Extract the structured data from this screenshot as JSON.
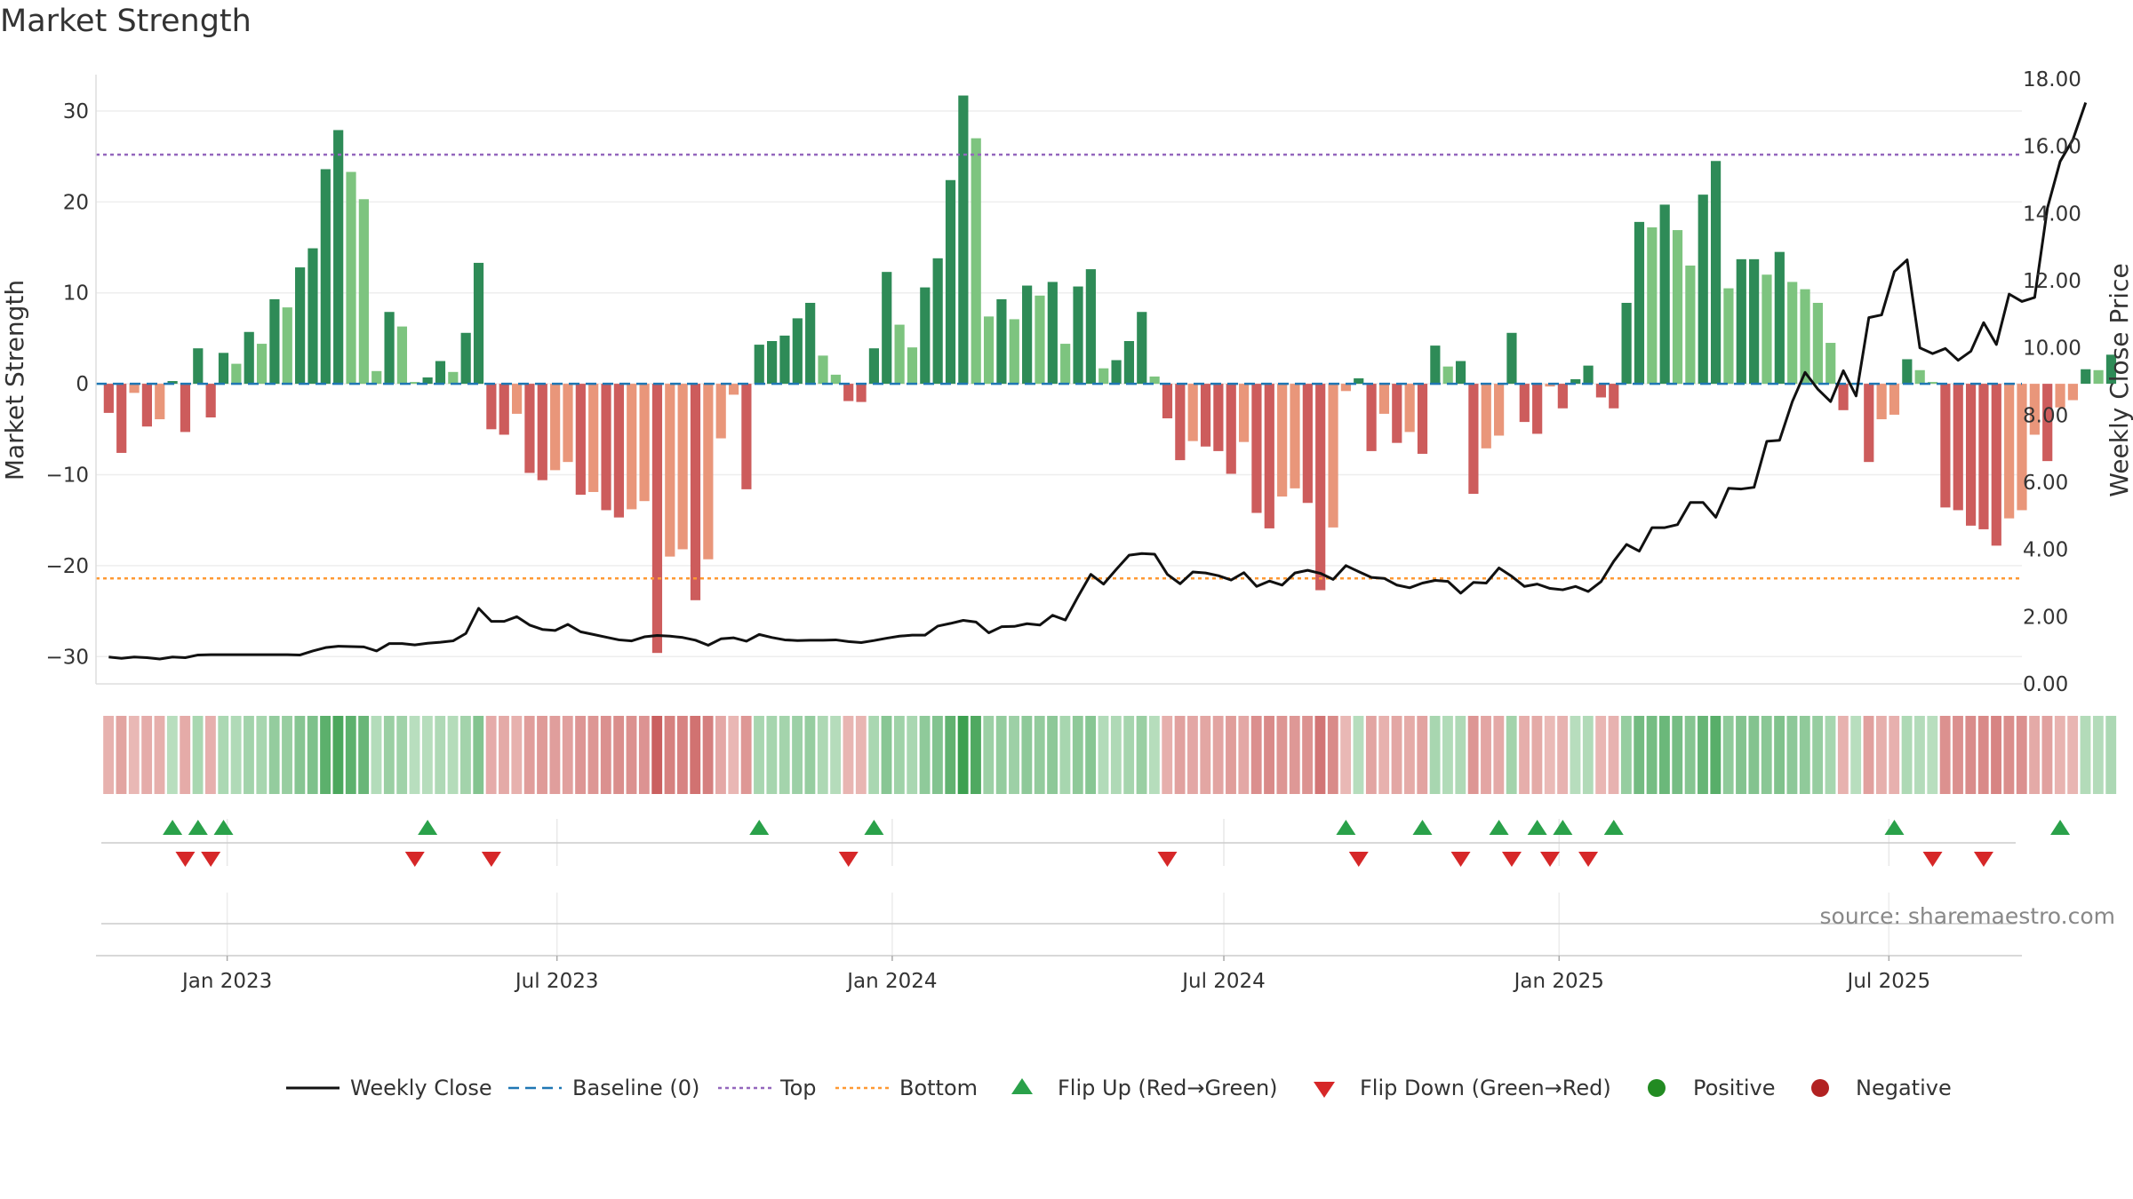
{
  "title": "Market Strength",
  "source": "source: sharemaestro.com",
  "chart_data": {
    "type": "bar",
    "y_left_label": "Market Strength",
    "y_right_label": "Weekly Close Price",
    "y_left_range": [
      -33,
      34
    ],
    "y_right_range": [
      0,
      18
    ],
    "y_left_ticks": [
      "30",
      "20",
      "10",
      "0",
      "−10",
      "−20",
      "−30"
    ],
    "y_left_tick_values": [
      30,
      20,
      10,
      0,
      -10,
      -20,
      -30
    ],
    "y_right_ticks": [
      "18.00",
      "16.00",
      "14.00",
      "12.00",
      "10.00",
      "8.00",
      "6.00",
      "4.00",
      "2.00",
      "0.00"
    ],
    "y_right_tick_values": [
      18,
      16,
      14,
      12,
      10,
      8,
      6,
      4,
      2,
      0
    ],
    "x_ticks": [
      "Jan 2023",
      "Jul 2023",
      "Jan 2024",
      "Jul 2024",
      "Jan 2025",
      "Jul 2025"
    ],
    "x_tick_dates": [
      "2023-01-01",
      "2023-07-01",
      "2024-01-01",
      "2024-07-01",
      "2025-01-01",
      "2025-07-01"
    ],
    "x_range": [
      "2022-10-21",
      "2025-09-12"
    ],
    "first_week": "2022-10-28",
    "top_line": 25.2,
    "bottom_line": -21.4,
    "baseline": 0,
    "strength": [
      -3.2,
      -7.6,
      -1.0,
      -4.7,
      -3.9,
      0.3,
      -5.3,
      3.9,
      -3.7,
      3.4,
      2.2,
      5.7,
      4.4,
      9.3,
      8.4,
      12.8,
      14.9,
      23.6,
      27.9,
      23.3,
      20.3,
      1.4,
      7.9,
      6.3,
      0.2,
      0.7,
      2.5,
      1.3,
      5.6,
      13.3,
      -5.0,
      -5.6,
      -3.3,
      -9.8,
      -10.6,
      -9.5,
      -8.6,
      -12.2,
      -11.9,
      -13.9,
      -14.7,
      -13.8,
      -12.9,
      -29.6,
      -19.0,
      -18.2,
      -23.8,
      -19.3,
      -6.0,
      -1.2,
      -11.6,
      4.3,
      4.7,
      5.3,
      7.2,
      8.9,
      3.1,
      1.0,
      -1.9,
      -2.0,
      3.9,
      12.3,
      6.5,
      4.0,
      10.6,
      13.8,
      22.4,
      31.7,
      27.0,
      7.4,
      9.3,
      7.1,
      10.8,
      9.7,
      11.2,
      4.4,
      10.7,
      12.6,
      1.7,
      2.6,
      4.7,
      7.9,
      0.8,
      -3.8,
      -8.4,
      -6.3,
      -6.9,
      -7.4,
      -9.9,
      -6.4,
      -14.2,
      -15.9,
      -12.4,
      -11.5,
      -13.1,
      -22.7,
      -15.8,
      -0.8,
      0.6,
      -7.4,
      -3.3,
      -6.5,
      -5.3,
      -7.7,
      4.2,
      1.9,
      2.5,
      -12.1,
      -7.1,
      -5.7,
      5.6,
      -4.2,
      -5.5,
      -0.3,
      -2.7,
      0.5,
      2.0,
      -1.5,
      -2.7,
      8.9,
      17.8,
      17.2,
      19.7,
      16.9,
      13.0,
      20.8,
      24.5,
      10.5,
      13.7,
      13.7,
      12.0,
      14.5,
      11.2,
      10.4,
      8.9,
      4.5,
      -2.9,
      0.1,
      -8.6,
      -3.9,
      -3.4,
      2.7,
      1.5,
      0.2,
      -13.6,
      -13.9,
      -15.6,
      -16.0,
      -17.8,
      -14.8,
      -13.9,
      -5.6,
      -8.5,
      -2.6,
      -1.8,
      1.6,
      1.5,
      3.2
    ],
    "weekly_close": [
      0.8,
      0.76,
      0.8,
      0.78,
      0.74,
      0.8,
      0.78,
      0.86,
      0.87,
      0.87,
      0.87,
      0.87,
      0.87,
      0.87,
      0.87,
      0.86,
      0.98,
      1.08,
      1.12,
      1.11,
      1.1,
      0.98,
      1.2,
      1.2,
      1.16,
      1.21,
      1.24,
      1.28,
      1.5,
      2.25,
      1.86,
      1.86,
      2.0,
      1.75,
      1.62,
      1.59,
      1.77,
      1.55,
      1.47,
      1.39,
      1.31,
      1.28,
      1.4,
      1.44,
      1.42,
      1.38,
      1.3,
      1.15,
      1.34,
      1.37,
      1.27,
      1.47,
      1.38,
      1.31,
      1.29,
      1.3,
      1.3,
      1.31,
      1.26,
      1.23,
      1.29,
      1.36,
      1.42,
      1.45,
      1.45,
      1.72,
      1.8,
      1.89,
      1.84,
      1.52,
      1.7,
      1.71,
      1.79,
      1.75,
      2.04,
      1.9,
      2.6,
      3.26,
      2.97,
      3.41,
      3.83,
      3.88,
      3.86,
      3.26,
      2.98,
      3.33,
      3.3,
      3.22,
      3.09,
      3.31,
      2.9,
      3.06,
      2.94,
      3.3,
      3.38,
      3.29,
      3.11,
      3.52,
      3.34,
      3.17,
      3.14,
      2.94,
      2.86,
      3.0,
      3.08,
      3.05,
      2.7,
      3.02,
      3.0,
      3.45,
      3.2,
      2.9,
      2.97,
      2.84,
      2.8,
      2.9,
      2.75,
      3.04,
      3.65,
      4.15,
      3.95,
      4.65,
      4.65,
      4.74,
      5.4,
      5.4,
      4.96,
      5.82,
      5.8,
      5.85,
      7.22,
      7.25,
      8.4,
      9.27,
      8.77,
      8.4,
      9.32,
      8.57,
      10.9,
      10.98,
      12.27,
      12.62,
      10.0,
      9.83,
      9.98,
      9.63,
      9.9,
      10.75,
      10.1,
      11.6,
      11.38,
      11.5,
      14.16,
      15.55,
      16.2,
      17.3
    ],
    "flip_up_weeks": [
      5,
      7,
      9,
      25,
      51,
      60,
      97,
      103,
      109,
      112,
      114,
      118,
      140,
      153
    ],
    "flip_down_weeks": [
      6,
      8,
      24,
      30,
      58,
      83,
      98,
      106,
      110,
      113,
      116,
      143,
      147
    ],
    "legend": [
      "Weekly Close",
      "Baseline (0)",
      "Top",
      "Bottom",
      "Flip Up (Red→Green)",
      "Flip Down (Green→Red)",
      "Positive",
      "Negative"
    ],
    "legend_placement": "bottom-center",
    "colors": {
      "strong_green": "#2e8b57",
      "light_green": "#7dc47f",
      "strong_red": "#cd5c5c",
      "light_red": "#e9967a",
      "close_line": "#111111",
      "baseline": "#1f77b4",
      "top": "#9467bd",
      "bottom": "#ff9933",
      "flip_up": "#2aa14a",
      "flip_down": "#d62728",
      "positive": "#228b22",
      "negative": "#b22222"
    }
  }
}
